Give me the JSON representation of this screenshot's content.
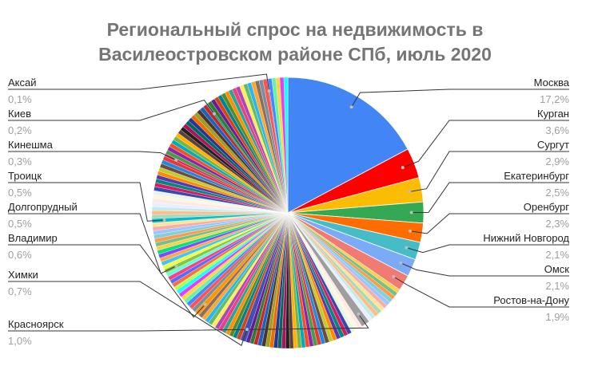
{
  "chart_data": {
    "type": "pie",
    "title_lines": [
      "Региональный спрос на недвижимость в",
      "Василеостровском районе СПб, июль 2020"
    ],
    "labeled_slices": [
      {
        "name": "Москва",
        "value": "17,2%",
        "pct": 17.2,
        "color": "#4285f4"
      },
      {
        "name": "Курган",
        "value": "3,6%",
        "pct": 3.6,
        "color": "#ff0000"
      },
      {
        "name": "Сургут",
        "value": "2,9%",
        "pct": 2.9,
        "color": "#fbbc04"
      },
      {
        "name": "Екатеринбург",
        "value": "2,5%",
        "pct": 2.5,
        "color": "#34a853"
      },
      {
        "name": "Оренбург",
        "value": "2,3%",
        "pct": 2.3,
        "color": "#ff6d01"
      },
      {
        "name": "Нижний Новгород",
        "value": "2,1%",
        "pct": 2.1,
        "color": "#46bdc6"
      },
      {
        "name": "Омск",
        "value": "2,1%",
        "pct": 2.1,
        "color": "#7baaf7"
      },
      {
        "name": "Ростов-на-Дону",
        "value": "1,9%",
        "pct": 1.9,
        "color": "#f07b72"
      },
      {
        "name": "Красноярск",
        "value": "1,0%",
        "pct": 1.0,
        "color": "#9e9e9e"
      },
      {
        "name": "Химки",
        "value": "0,7%",
        "pct": 0.7,
        "color": "#3f51b5"
      },
      {
        "name": "Владимир",
        "value": "0,6%",
        "pct": 0.6,
        "color": "#ff9800"
      },
      {
        "name": "Долгопрудный",
        "value": "0,5%",
        "pct": 0.5,
        "color": "#8bc34a"
      },
      {
        "name": "Троицк",
        "value": "0,5%",
        "pct": 0.5,
        "color": "#00bcd4"
      },
      {
        "name": "Кинешма",
        "value": "0,3%",
        "pct": 0.3,
        "color": "#e91e63"
      },
      {
        "name": "Киев",
        "value": "0,2%",
        "pct": 0.2,
        "color": "#009688"
      },
      {
        "name": "Аксай",
        "value": "0,1%",
        "pct": 0.1,
        "color": "#795548"
      }
    ],
    "palette": [
      "#fcd04f",
      "#71c287",
      "#ff994d",
      "#7ed1d7",
      "#a0c3ff",
      "#f6aea9",
      "#fde49b",
      "#a8dab5",
      "#ffbb8a",
      "#c5eaec",
      "#e8f0fe",
      "#fce8e6",
      "#fef7e0",
      "#e6f4ea",
      "#3949ab",
      "#d81b60",
      "#00897b",
      "#5e35b1",
      "#fb8c00",
      "#c0ca33",
      "#6d4c41",
      "#1e88e5",
      "#e53935",
      "#43a047",
      "#8e24aa",
      "#f4511e",
      "#00acc1",
      "#7cb342",
      "#ffb300",
      "#5d4037",
      "#212121",
      "#ad1457",
      "#00695c",
      "#283593",
      "#ef6c00",
      "#9e9d24",
      "#4e342e",
      "#1565c0",
      "#c62828",
      "#2e7d32",
      "#6a1b9a",
      "#d84315",
      "#00838f",
      "#558b2f",
      "#ff8f00",
      "#26a69a",
      "#ec407a",
      "#ab47bc",
      "#ffee58",
      "#66bb6a",
      "#29b6f6",
      "#ffa726",
      "#8d6e63",
      "#78909c",
      "#ff5252",
      "#448aff",
      "#69f0ae",
      "#ffd740",
      "#e040fb",
      "#18ffff",
      "#b2ff59",
      "#ff6e40",
      "#536dfe",
      "#ff4081",
      "#64ffda",
      "#eeff41",
      "#40c4ff",
      "#ffab40",
      "#7c4dff",
      "#00e676"
    ]
  }
}
